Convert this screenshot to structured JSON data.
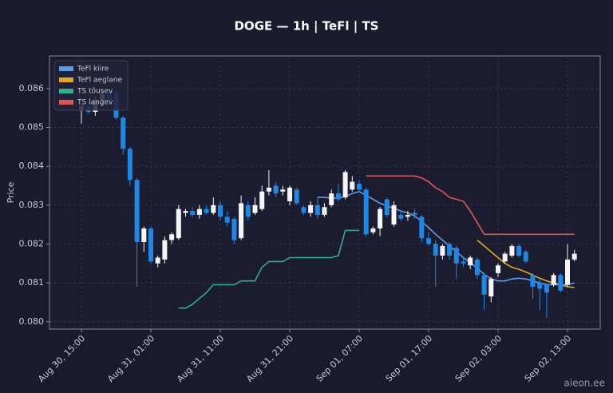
{
  "chart_data": {
    "type": "candlestick",
    "title": "DOGE — 1h  |  TeFl  |  TS",
    "y_label": "Price",
    "watermark": "aieon.ee",
    "x": [
      "Aug 30, 15:00",
      "Aug 30, 16:00",
      "Aug 30, 17:00",
      "Aug 30, 18:00",
      "Aug 30, 19:00",
      "Aug 30, 20:00",
      "Aug 30, 21:00",
      "Aug 30, 22:00",
      "Aug 30, 23:00",
      "Aug 31, 00:00",
      "Aug 31, 01:00",
      "Aug 31, 02:00",
      "Aug 31, 03:00",
      "Aug 31, 04:00",
      "Aug 31, 05:00",
      "Aug 31, 06:00",
      "Aug 31, 07:00",
      "Aug 31, 08:00",
      "Aug 31, 09:00",
      "Aug 31, 10:00",
      "Aug 31, 11:00",
      "Aug 31, 12:00",
      "Aug 31, 13:00",
      "Aug 31, 14:00",
      "Aug 31, 15:00",
      "Aug 31, 16:00",
      "Aug 31, 17:00",
      "Aug 31, 18:00",
      "Aug 31, 19:00",
      "Aug 31, 20:00",
      "Aug 31, 21:00",
      "Aug 31, 22:00",
      "Aug 31, 23:00",
      "Sep 01, 00:00",
      "Sep 01, 01:00",
      "Sep 01, 02:00",
      "Sep 01, 03:00",
      "Sep 01, 04:00",
      "Sep 01, 05:00",
      "Sep 01, 06:00",
      "Sep 01, 07:00",
      "Sep 01, 08:00",
      "Sep 01, 09:00",
      "Sep 01, 10:00",
      "Sep 01, 11:00",
      "Sep 01, 12:00",
      "Sep 01, 13:00",
      "Sep 01, 14:00",
      "Sep 01, 15:00",
      "Sep 01, 16:00",
      "Sep 01, 17:00",
      "Sep 01, 18:00",
      "Sep 01, 19:00",
      "Sep 01, 20:00",
      "Sep 01, 21:00",
      "Sep 01, 22:00",
      "Sep 01, 23:00",
      "Sep 02, 00:00",
      "Sep 02, 01:00",
      "Sep 02, 02:00",
      "Sep 02, 03:00",
      "Sep 02, 04:00",
      "Sep 02, 05:00",
      "Sep 02, 06:00",
      "Sep 02, 07:00",
      "Sep 02, 08:00",
      "Sep 02, 09:00",
      "Sep 02, 10:00",
      "Sep 02, 11:00",
      "Sep 02, 12:00",
      "Sep 02, 13:00",
      "Sep 02, 14:00"
    ],
    "open": [
      0.08545,
      0.08555,
      0.0854,
      0.0857,
      0.08585,
      0.0859,
      0.08525,
      0.08445,
      0.08365,
      0.08205,
      0.0824,
      0.0815,
      0.0816,
      0.0821,
      0.08215,
      0.0828,
      0.08285,
      0.08275,
      0.0829,
      0.0828,
      0.083,
      0.0827,
      0.08265,
      0.08215,
      0.083,
      0.0828,
      0.0829,
      0.08335,
      0.0835,
      0.08335,
      0.0831,
      0.0834,
      0.08295,
      0.0828,
      0.083,
      0.08275,
      0.083,
      0.0833,
      0.0832,
      0.0834,
      0.08355,
      0.0834,
      0.0823,
      0.0824,
      0.08315,
      0.0825,
      0.08275,
      0.0827,
      0.0828,
      0.0827,
      0.08215,
      0.082,
      0.0817,
      0.082,
      0.0819,
      0.08155,
      0.08145,
      0.0816,
      0.0812,
      0.08065,
      0.08125,
      0.08155,
      0.0817,
      0.08195,
      0.0818,
      0.0812,
      0.081,
      0.08095,
      0.08095,
      0.0812,
      0.08095,
      0.0816
    ],
    "high": [
      0.0856,
      0.0857,
      0.0858,
      0.086,
      0.086,
      0.086,
      0.0853,
      0.0845,
      0.0837,
      0.08245,
      0.08245,
      0.0817,
      0.0822,
      0.0823,
      0.083,
      0.0829,
      0.08295,
      0.083,
      0.083,
      0.0832,
      0.0831,
      0.08285,
      0.0827,
      0.08325,
      0.0831,
      0.0832,
      0.0835,
      0.0839,
      0.0836,
      0.0835,
      0.0835,
      0.08345,
      0.083,
      0.0831,
      0.0832,
      0.08305,
      0.0834,
      0.08355,
      0.0839,
      0.08375,
      0.08365,
      0.08345,
      0.08245,
      0.08295,
      0.0832,
      0.0831,
      0.08285,
      0.08285,
      0.0829,
      0.08275,
      0.0823,
      0.0821,
      0.082,
      0.08205,
      0.08195,
      0.08165,
      0.0817,
      0.08165,
      0.08125,
      0.08115,
      0.0815,
      0.0818,
      0.082,
      0.082,
      0.08185,
      0.08125,
      0.0811,
      0.081,
      0.08125,
      0.08125,
      0.082,
      0.08185
    ],
    "low": [
      0.0851,
      0.08535,
      0.0853,
      0.08555,
      0.0856,
      0.0852,
      0.0843,
      0.0835,
      0.0809,
      0.0818,
      0.0815,
      0.0814,
      0.0815,
      0.082,
      0.0821,
      0.0827,
      0.0827,
      0.08265,
      0.08275,
      0.08275,
      0.0826,
      0.08245,
      0.082,
      0.0821,
      0.0826,
      0.08275,
      0.08285,
      0.08325,
      0.0832,
      0.08325,
      0.083,
      0.083,
      0.08275,
      0.0827,
      0.08265,
      0.0827,
      0.08295,
      0.0831,
      0.08315,
      0.08335,
      0.08335,
      0.0822,
      0.08225,
      0.0822,
      0.0827,
      0.08245,
      0.0826,
      0.0826,
      0.08265,
      0.08205,
      0.08195,
      0.0809,
      0.0816,
      0.0816,
      0.0811,
      0.0814,
      0.08135,
      0.0811,
      0.0803,
      0.0805,
      0.08115,
      0.0815,
      0.08165,
      0.08165,
      0.0815,
      0.0806,
      0.0803,
      0.0801,
      0.0809,
      0.08075,
      0.0809,
      0.08155
    ],
    "close": [
      0.08555,
      0.0854,
      0.0857,
      0.08585,
      0.0857,
      0.08525,
      0.08445,
      0.08365,
      0.08205,
      0.0824,
      0.08155,
      0.08165,
      0.0821,
      0.08225,
      0.0829,
      0.08285,
      0.08275,
      0.0829,
      0.0828,
      0.083,
      0.0827,
      0.08255,
      0.0821,
      0.08305,
      0.0827,
      0.083,
      0.08335,
      0.08345,
      0.0833,
      0.0834,
      0.08345,
      0.08305,
      0.0828,
      0.083,
      0.08275,
      0.08295,
      0.0833,
      0.08315,
      0.08385,
      0.0836,
      0.0834,
      0.08225,
      0.0824,
      0.0829,
      0.08275,
      0.083,
      0.08265,
      0.08275,
      0.08275,
      0.08215,
      0.082,
      0.0817,
      0.08195,
      0.0817,
      0.0815,
      0.0815,
      0.08165,
      0.0812,
      0.0807,
      0.0811,
      0.08145,
      0.08175,
      0.08195,
      0.0817,
      0.08155,
      0.0809,
      0.08085,
      0.08075,
      0.0812,
      0.0808,
      0.0816,
      0.08175
    ],
    "up_color": "#f5f5f5",
    "down_color": "#1e88e5",
    "series": [
      {
        "name": "TeFl kiire",
        "color": "#5b9ee8",
        "values": [
          null,
          null,
          null,
          null,
          null,
          null,
          null,
          null,
          null,
          null,
          null,
          null,
          null,
          null,
          null,
          null,
          null,
          null,
          null,
          null,
          null,
          null,
          null,
          null,
          null,
          null,
          null,
          null,
          null,
          null,
          null,
          null,
          null,
          null,
          0.0832,
          0.0832,
          0.08318,
          0.08318,
          0.08322,
          0.0833,
          0.08335,
          0.08325,
          0.08315,
          0.08305,
          0.08298,
          0.08292,
          0.08285,
          0.0828,
          0.08272,
          0.08258,
          0.08242,
          0.08225,
          0.0821,
          0.08195,
          0.0818,
          0.08165,
          0.08152,
          0.08138,
          0.08122,
          0.0811,
          0.08105,
          0.08105,
          0.0811,
          0.08112,
          0.0811,
          0.08105,
          0.081,
          0.08095,
          0.08095,
          0.08095,
          0.08095,
          0.081
        ]
      },
      {
        "name": "TeFl aeglane",
        "color": "#e3a81b",
        "values": [
          null,
          null,
          null,
          null,
          null,
          null,
          null,
          null,
          null,
          null,
          null,
          null,
          null,
          null,
          null,
          null,
          null,
          null,
          null,
          null,
          null,
          null,
          null,
          null,
          null,
          null,
          null,
          null,
          null,
          null,
          null,
          null,
          null,
          null,
          null,
          null,
          null,
          null,
          null,
          null,
          null,
          null,
          null,
          null,
          null,
          null,
          null,
          null,
          null,
          null,
          null,
          null,
          null,
          null,
          null,
          null,
          null,
          0.0821,
          0.08195,
          0.0818,
          0.08165,
          0.0815,
          0.0814,
          0.08135,
          0.08128,
          0.0812,
          0.08112,
          0.08105,
          0.081,
          0.08095,
          0.0809,
          0.08088
        ]
      },
      {
        "name": "TS tõusev",
        "color": "#2fae8c",
        "values": [
          null,
          null,
          null,
          null,
          null,
          null,
          null,
          null,
          null,
          null,
          null,
          null,
          null,
          null,
          0.08035,
          0.08035,
          0.08045,
          0.0806,
          0.08075,
          0.08095,
          0.08095,
          0.08095,
          0.08095,
          0.08105,
          0.08105,
          0.08105,
          0.0814,
          0.08155,
          0.08155,
          0.08155,
          0.08165,
          0.08165,
          0.08165,
          0.08165,
          0.08165,
          0.08165,
          0.08165,
          0.0817,
          0.08235,
          0.08235,
          0.08235,
          null,
          null,
          null,
          null,
          null,
          null,
          null,
          null,
          null,
          null,
          null,
          null,
          null,
          null,
          null,
          null,
          null,
          null,
          null,
          null,
          null,
          null,
          null,
          null,
          null,
          null,
          null,
          null,
          null,
          null,
          null
        ]
      },
      {
        "name": "TS langev",
        "color": "#e05656",
        "values": [
          null,
          null,
          null,
          null,
          null,
          null,
          null,
          null,
          null,
          null,
          null,
          null,
          null,
          null,
          null,
          null,
          null,
          null,
          null,
          null,
          null,
          null,
          null,
          null,
          null,
          null,
          null,
          null,
          null,
          null,
          null,
          null,
          null,
          null,
          null,
          null,
          null,
          null,
          null,
          null,
          null,
          0.08375,
          0.08375,
          0.08375,
          0.08375,
          0.08375,
          0.08375,
          0.08375,
          0.08375,
          0.0837,
          0.0836,
          0.08345,
          0.08335,
          0.0832,
          0.08315,
          0.0831,
          0.08285,
          0.08255,
          0.08225,
          0.08225,
          0.08225,
          0.08225,
          0.08225,
          0.08225,
          0.08225,
          0.08225,
          0.08225,
          0.08225,
          0.08225,
          0.08225,
          0.08225,
          0.08225
        ]
      }
    ],
    "ylim": [
      0.07981,
      0.08684
    ],
    "yticks": [
      {
        "value": 0.08,
        "label": "0.080"
      },
      {
        "value": 0.081,
        "label": "0.081"
      },
      {
        "value": 0.082,
        "label": "0.082"
      },
      {
        "value": 0.083,
        "label": "0.083"
      },
      {
        "value": 0.084,
        "label": "0.084"
      },
      {
        "value": 0.085,
        "label": "0.085"
      },
      {
        "value": 0.086,
        "label": "0.086"
      }
    ],
    "xticks": [
      "Aug 30, 15:00",
      "Aug 31, 01:00",
      "Aug 31, 11:00",
      "Aug 31, 21:00",
      "Sep 01, 07:00",
      "Sep 01, 17:00",
      "Sep 02, 03:00",
      "Sep 02, 13:00"
    ],
    "grid": true,
    "legend": "upper left"
  }
}
